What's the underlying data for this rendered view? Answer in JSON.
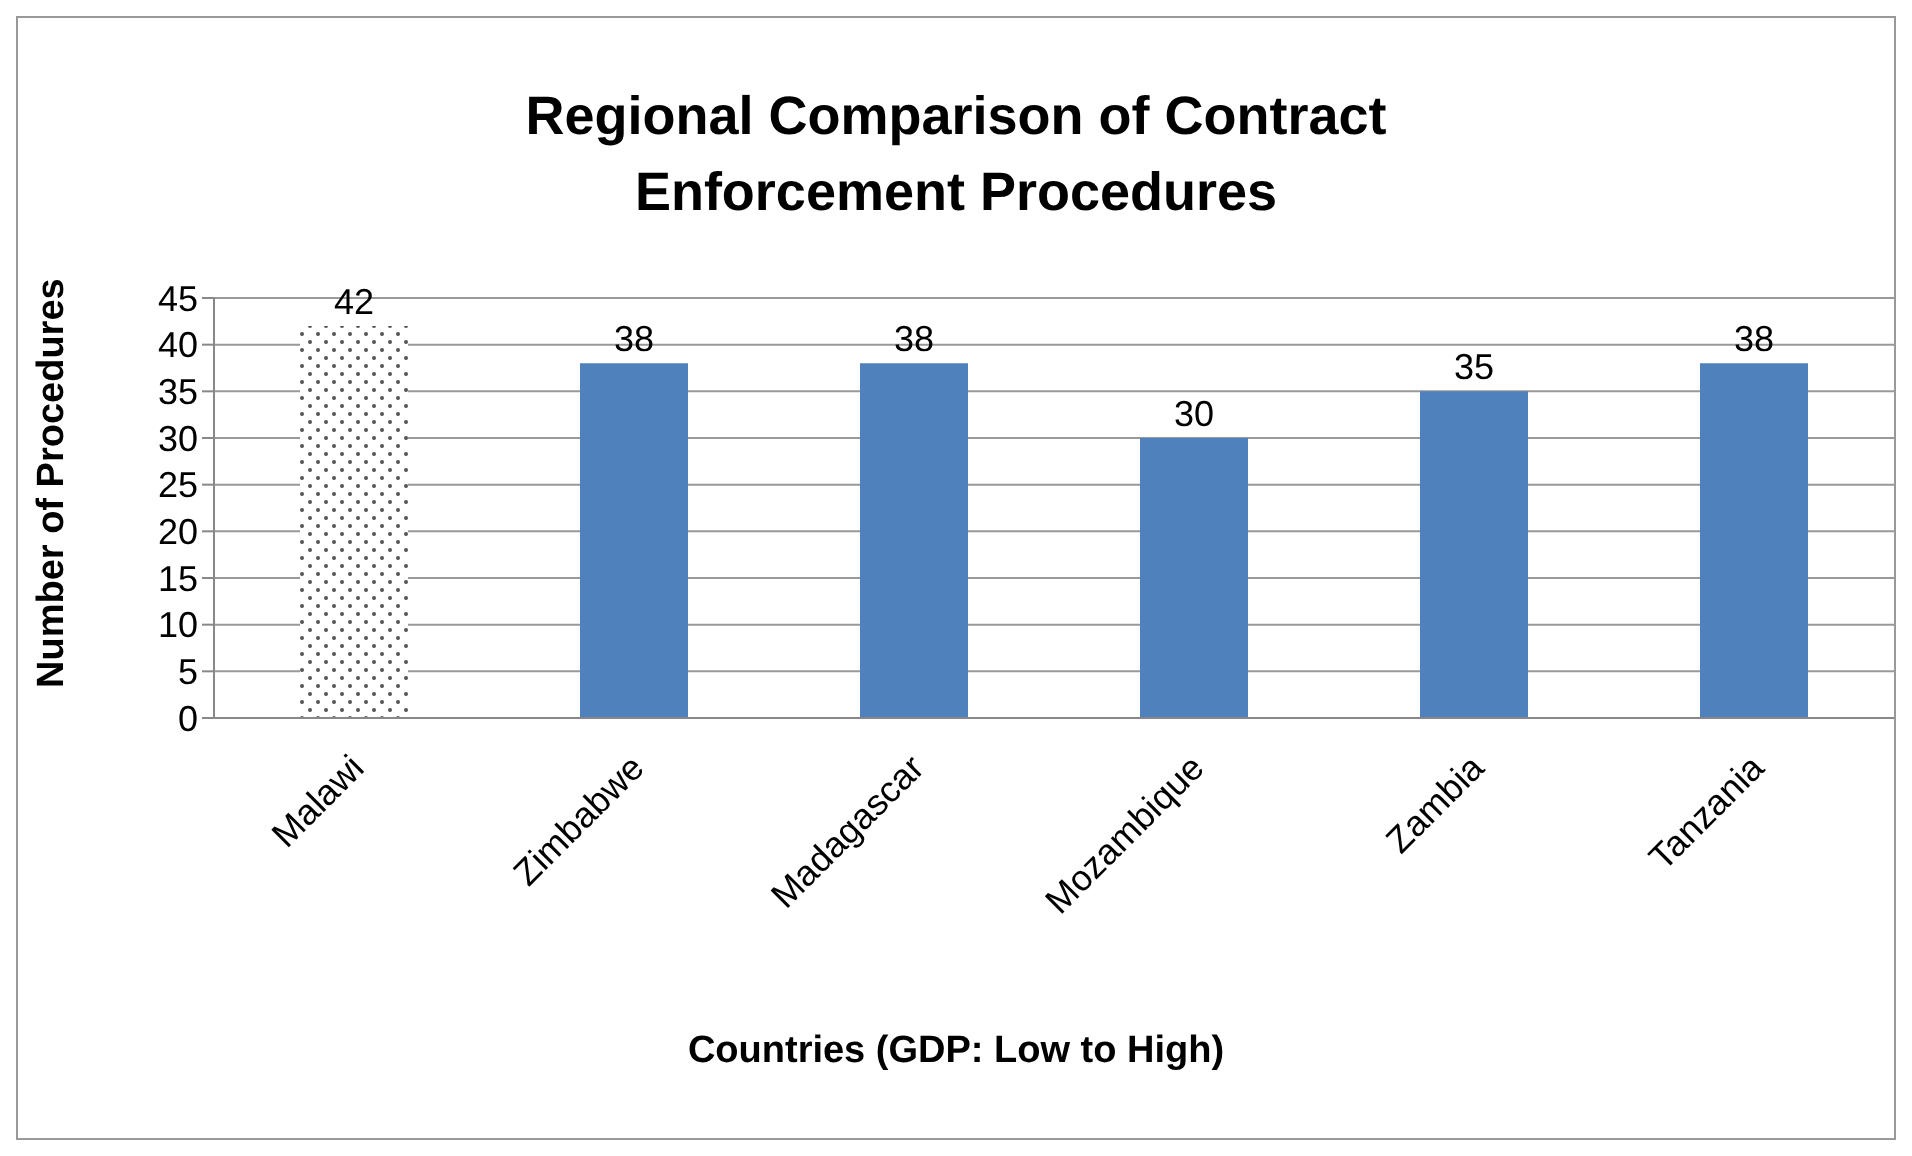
{
  "chart_data": {
    "type": "bar",
    "title": "Regional Comparison of Contract Enforcement Procedures",
    "xlabel": "Countries (GDP: Low to High)",
    "ylabel": "Number of Procedures",
    "categories": [
      "Malawi",
      "Zimbabwe",
      "Madagascar",
      "Mozambique",
      "Zambia",
      "Tanzania"
    ],
    "values": [
      42,
      38,
      38,
      30,
      35,
      38
    ],
    "colors": [
      "#ffffff",
      "#4f81bd",
      "#4f81bd",
      "#4f81bd",
      "#4f81bd",
      "#4f81bd"
    ],
    "ylim": [
      0,
      45
    ],
    "yticks": [
      0,
      5,
      10,
      15,
      20,
      25,
      30,
      35,
      40,
      45
    ],
    "grid": "y",
    "legend": false,
    "data_labels": true
  }
}
